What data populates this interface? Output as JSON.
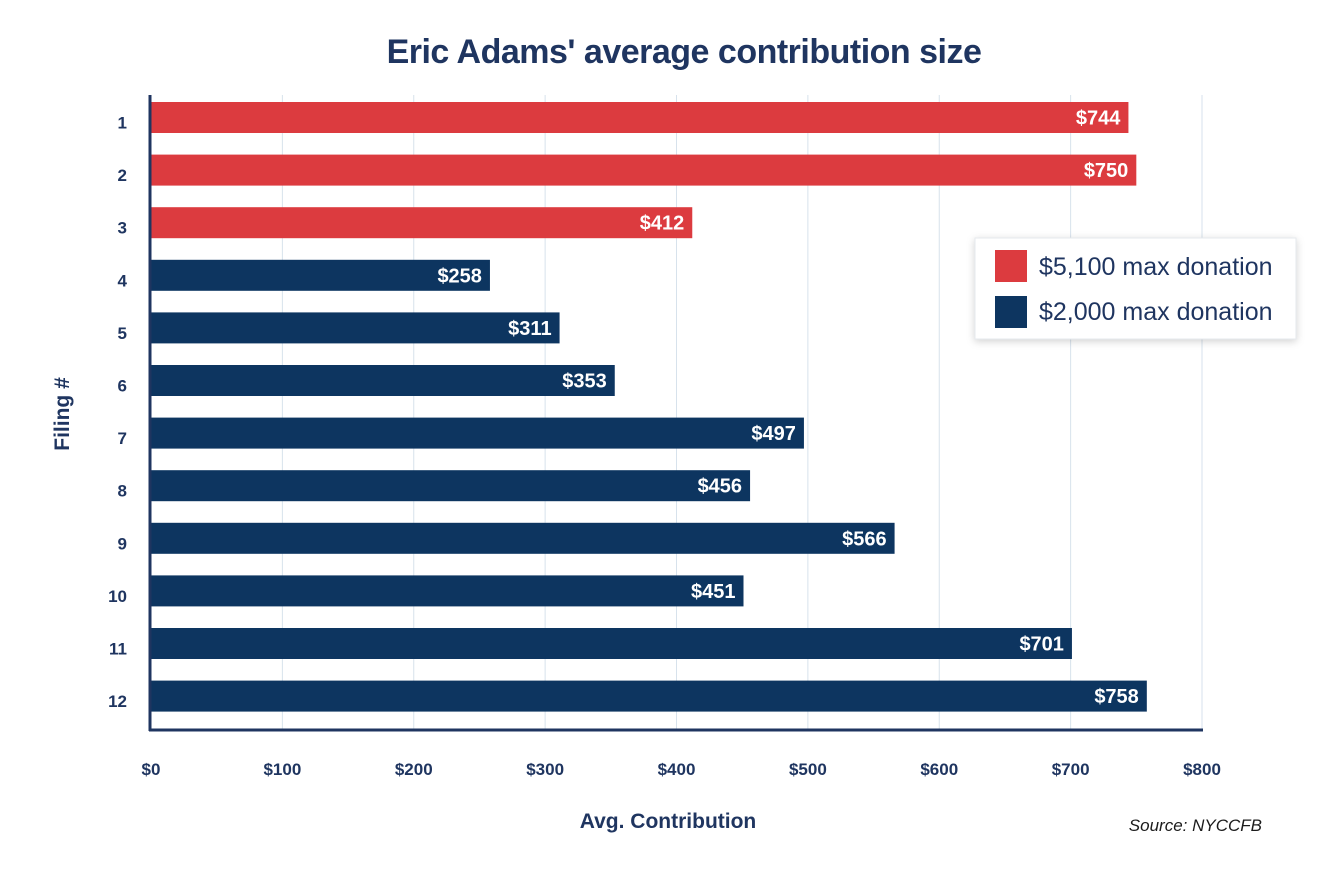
{
  "chart_data": {
    "type": "bar",
    "orientation": "horizontal",
    "title": "Eric Adams' average contribution size",
    "xlabel": "Avg. Contribution",
    "ylabel": "Filing #",
    "categories": [
      "1",
      "2",
      "3",
      "4",
      "5",
      "6",
      "7",
      "8",
      "9",
      "10",
      "11",
      "12"
    ],
    "values": [
      744,
      750,
      412,
      258,
      311,
      353,
      497,
      456,
      566,
      451,
      701,
      758
    ],
    "value_labels": [
      "$744",
      "$750",
      "$412",
      "$258",
      "$311",
      "$353",
      "$497",
      "$456",
      "$566",
      "$451",
      "$701",
      "$758"
    ],
    "bar_groups": [
      "red",
      "red",
      "red",
      "navy",
      "navy",
      "navy",
      "navy",
      "navy",
      "navy",
      "navy",
      "navy",
      "navy"
    ],
    "xlim": [
      0,
      800
    ],
    "xticks": [
      0,
      100,
      200,
      300,
      400,
      500,
      600,
      700,
      800
    ],
    "xtick_labels": [
      "$0",
      "$100",
      "$200",
      "$300",
      "$400",
      "$500",
      "$600",
      "$700",
      "$800"
    ],
    "grid": "vertical",
    "legend": {
      "placement": "right",
      "entries": [
        {
          "label": "$5,100 max donation",
          "color": "#dc3b3f"
        },
        {
          "label": "$2,000 max donation",
          "color": "#0d3560"
        }
      ]
    },
    "source": "Source: NYCCFB",
    "colors": {
      "red": "#dc3b3f",
      "navy": "#0d3560",
      "text": "#1f3560",
      "grid": "#d7e2ec"
    }
  }
}
